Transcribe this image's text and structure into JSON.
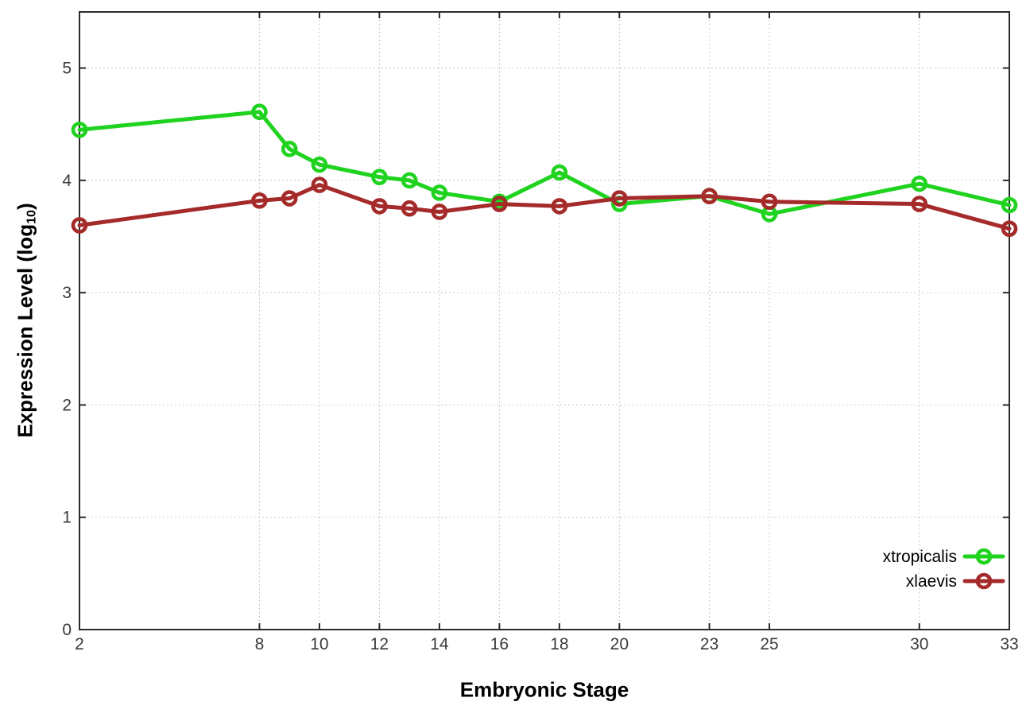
{
  "chart_data": {
    "type": "line",
    "title": "",
    "xlabel": "Embryonic Stage",
    "ylabel": "Expression Level (log10)",
    "xlim": [
      2,
      33
    ],
    "ylim": [
      0,
      5.5
    ],
    "xticks": [
      2,
      8,
      10,
      12,
      14,
      16,
      18,
      20,
      23,
      25,
      30,
      33
    ],
    "yticks": [
      0,
      1,
      2,
      3,
      4,
      5
    ],
    "grid": true,
    "grid_style": "dotted",
    "legend_position": "bottom-right-inside",
    "marker": "open-circle",
    "x": [
      2,
      8,
      9,
      10,
      12,
      13,
      14,
      16,
      18,
      20,
      23,
      25,
      30,
      33
    ],
    "series": [
      {
        "name": "xtropicalis",
        "color": "#1fd31f",
        "values": [
          4.45,
          4.61,
          4.28,
          4.14,
          4.03,
          4.0,
          3.89,
          3.81,
          4.07,
          3.79,
          3.86,
          3.7,
          3.97,
          3.78
        ]
      },
      {
        "name": "xlaevis",
        "color": "#a52a2a",
        "values": [
          3.6,
          3.82,
          3.84,
          3.96,
          3.77,
          3.75,
          3.72,
          3.79,
          3.77,
          3.84,
          3.86,
          3.81,
          3.79,
          3.57
        ]
      }
    ]
  },
  "labels": {
    "xlabel": "Embryonic Stage",
    "ylabel_main": "Expression Level (log",
    "ylabel_sub": "10",
    "ylabel_close": ")"
  },
  "style": {
    "background": "#ffffff",
    "plot_border_color": "#2b2b2b",
    "grid_color": "#b8b8b8",
    "tick_color": "#2b2b2b",
    "tick_label_color": "#3a3a3a",
    "axis_title_color": "#000000",
    "legend_text_color": "#000000"
  }
}
